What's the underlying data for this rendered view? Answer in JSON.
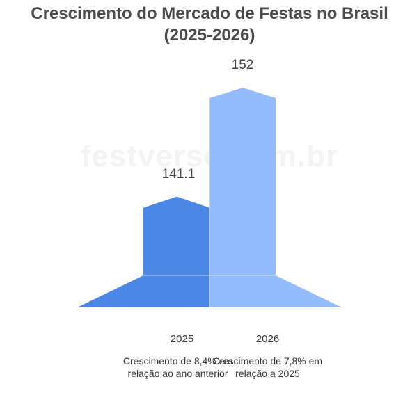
{
  "title_line1": "Crescimento do Mercado de Festas no Brasil",
  "title_line2": "(2025-2026)",
  "watermark": "festverso.com.br",
  "chart_data": {
    "type": "bar",
    "categories": [
      "2025",
      "2026"
    ],
    "values": [
      141.1,
      152
    ],
    "value_labels": [
      "141.1",
      "152"
    ],
    "notes": [
      "Crescimento de 8,4% em relação ao ano anterior",
      "Crescimento de 7,8% em relação a 2025"
    ],
    "colors": [
      "#4d87e6",
      "#94bbfc"
    ],
    "title": "Crescimento do Mercado de Festas no Brasil (2025-2026)"
  }
}
